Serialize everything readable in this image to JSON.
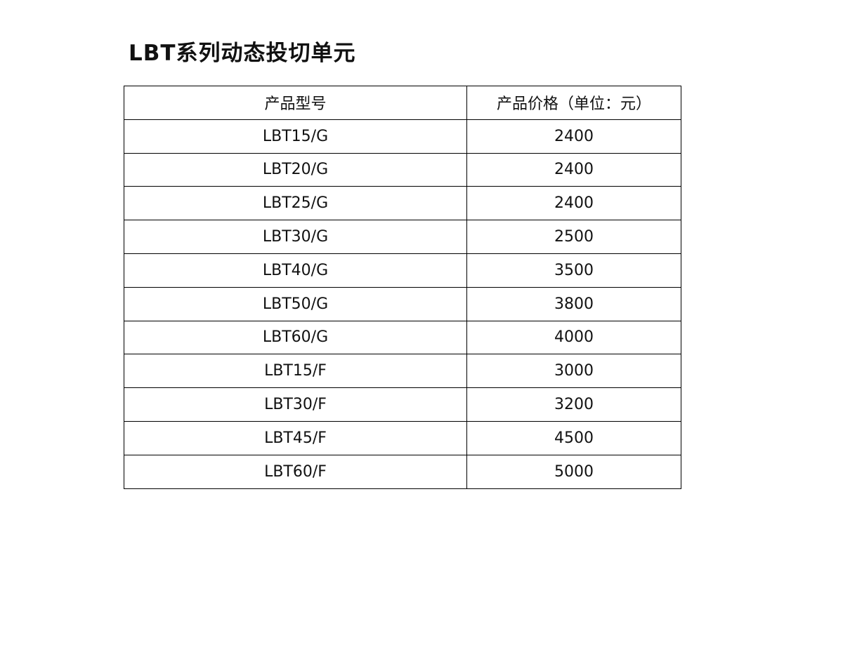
{
  "title": "LBT系列动态投切单元",
  "table": {
    "headers": [
      "产品型号",
      "产品价格（单位：元）"
    ],
    "rows": [
      [
        "LBT15/G",
        "2400"
      ],
      [
        "LBT20/G",
        "2400"
      ],
      [
        "LBT25/G",
        "2400"
      ],
      [
        "LBT30/G",
        "2500"
      ],
      [
        "LBT40/G",
        "3500"
      ],
      [
        "LBT50/G",
        "3800"
      ],
      [
        "LBT60/G",
        "4000"
      ],
      [
        "LBT15/F",
        "3000"
      ],
      [
        "LBT30/F",
        "3200"
      ],
      [
        "LBT45/F",
        "4500"
      ],
      [
        "LBT60/F",
        "5000"
      ]
    ]
  }
}
